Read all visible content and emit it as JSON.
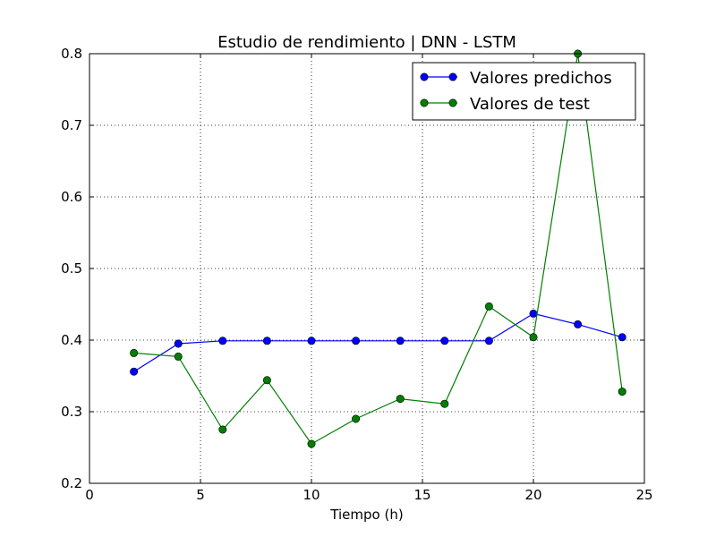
{
  "chart_data": {
    "type": "line",
    "title": "Estudio de rendimiento | DNN - LSTM",
    "xlabel": "Tiempo (h)",
    "ylabel": "",
    "xlim": [
      0,
      25
    ],
    "ylim": [
      0.2,
      0.8
    ],
    "xticks": [
      0,
      5,
      10,
      15,
      20,
      25
    ],
    "yticks": [
      0.2,
      0.3,
      0.4,
      0.5,
      0.6,
      0.7,
      0.8
    ],
    "xtick_labels": [
      "0",
      "5",
      "10",
      "15",
      "20",
      "25"
    ],
    "ytick_labels": [
      "0.2",
      "0.3",
      "0.4",
      "0.5",
      "0.6",
      "0.7",
      "0.8"
    ],
    "grid": true,
    "legend_position": "top-right",
    "x": [
      2,
      4,
      6,
      8,
      10,
      12,
      14,
      16,
      18,
      20,
      22,
      24
    ],
    "series": [
      {
        "name": "Valores predichos",
        "color": "#0000ff",
        "values": [
          0.356,
          0.395,
          0.399,
          0.399,
          0.399,
          0.399,
          0.399,
          0.399,
          0.399,
          0.437,
          0.422,
          0.404
        ]
      },
      {
        "name": "Valores de test",
        "color": "#007f00",
        "values": [
          0.382,
          0.377,
          0.275,
          0.344,
          0.255,
          0.29,
          0.318,
          0.311,
          0.447,
          0.404,
          0.8,
          0.328
        ]
      }
    ]
  }
}
